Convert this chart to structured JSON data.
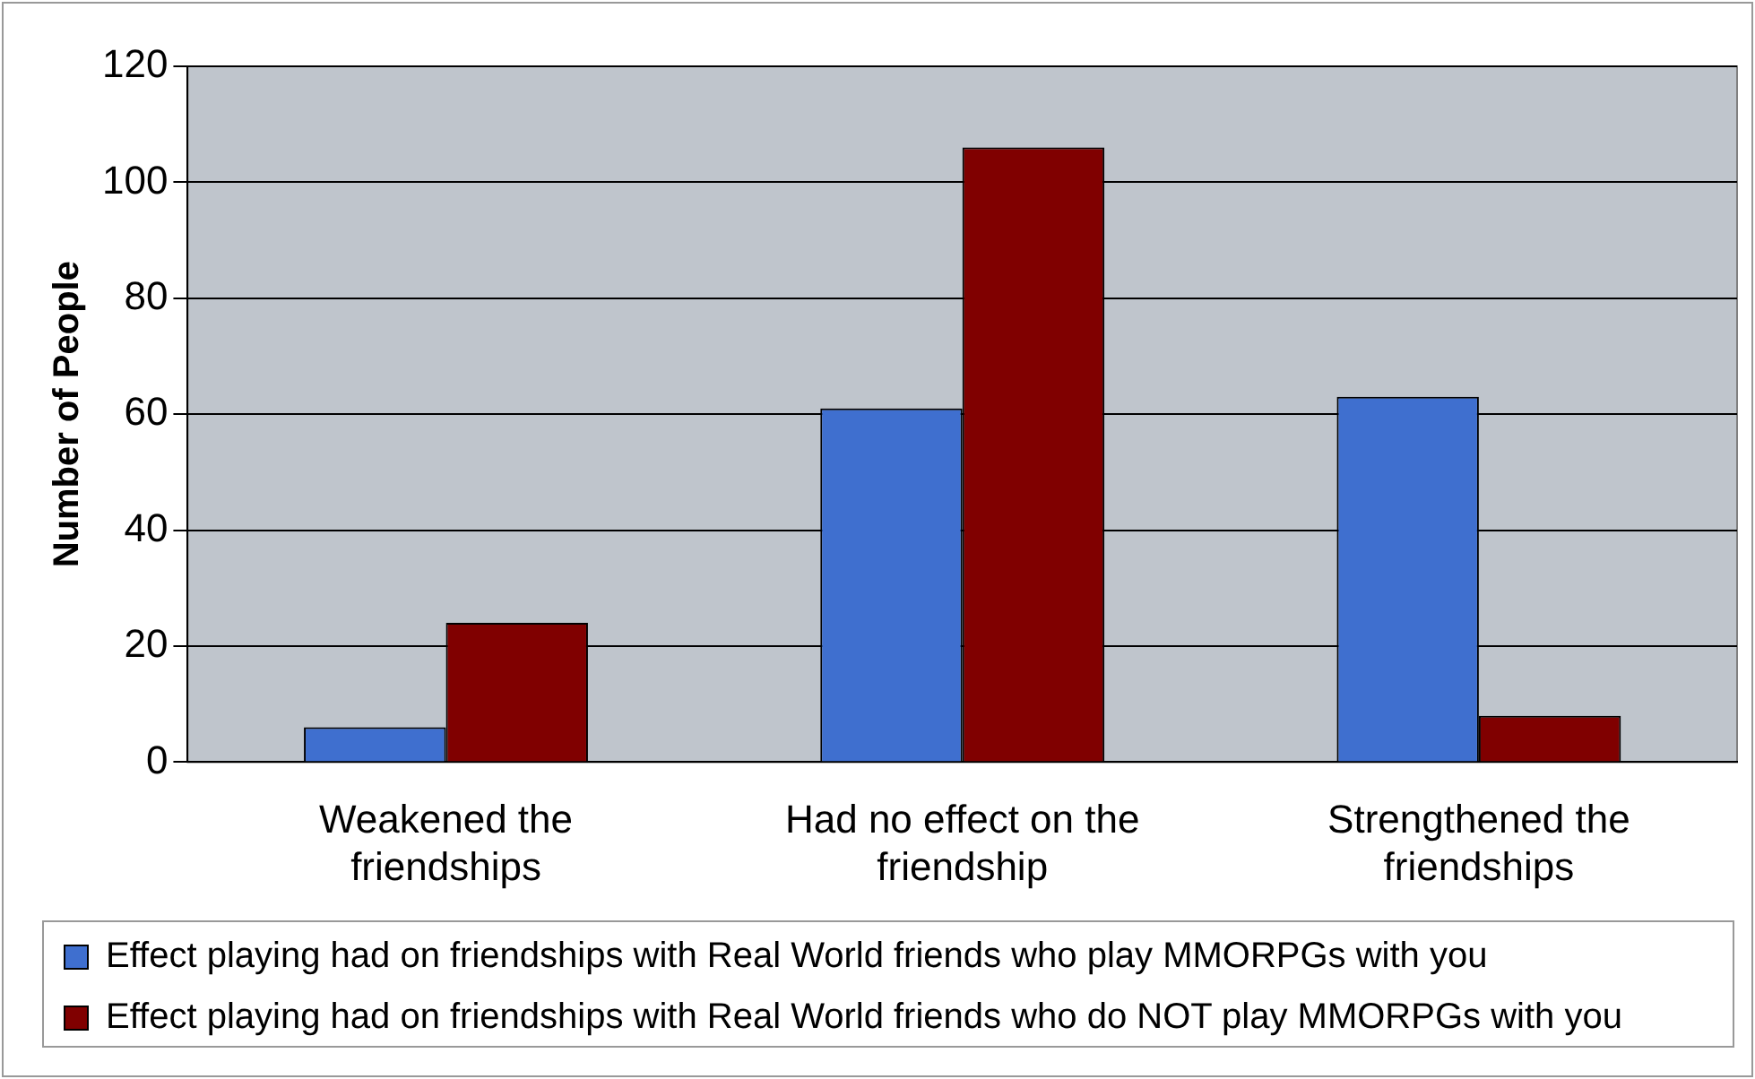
{
  "chart_data": {
    "type": "bar",
    "ylabel": "Number of People",
    "categories": [
      "Weakened the friendships",
      "Had no effect on the friendship",
      "Strengthened the friendships"
    ],
    "series": [
      {
        "name": "Effect playing had on friendships with Real World friends who play MMORPGs with you",
        "color": "#3f6fcf",
        "values": [
          6,
          61,
          63
        ]
      },
      {
        "name": "Effect playing had on friendships with Real World friends who do NOT play MMORPGs with you",
        "color": "#800000",
        "values": [
          24,
          106,
          8
        ]
      }
    ],
    "ylim": [
      0,
      120
    ],
    "yticks": [
      0,
      20,
      40,
      60,
      80,
      100,
      120
    ],
    "grid": "y",
    "legend": "bottom"
  }
}
